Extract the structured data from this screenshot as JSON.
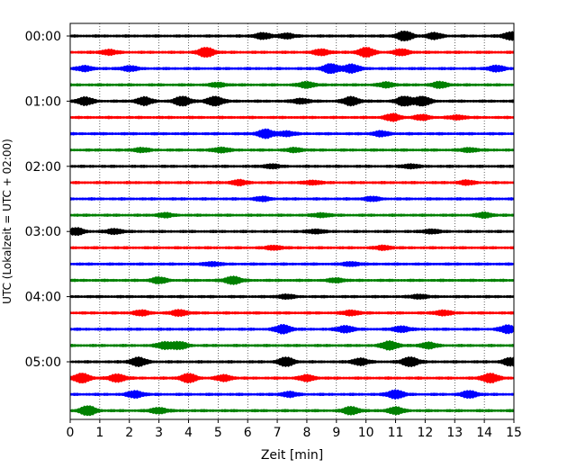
{
  "chart_data": {
    "type": "line",
    "title": "",
    "xlabel": "Zeit  [min]",
    "ylabel": "UTC (Lokalzeit = UTC + 02:00)",
    "xlim": [
      0,
      15
    ],
    "xticks": [
      "0",
      "1",
      "2",
      "3",
      "4",
      "5",
      "6",
      "7",
      "8",
      "9",
      "10",
      "11",
      "12",
      "13",
      "14",
      "15"
    ],
    "y_tick_labels": [
      "00:00",
      "01:00",
      "02:00",
      "03:00",
      "04:00",
      "05:00"
    ],
    "grid": "vertical dotted",
    "trace_interval_minutes": 15,
    "trace_count": 24,
    "trace_colors": [
      "#000000",
      "#ff0000",
      "#0000ff",
      "#008000"
    ],
    "bursts": [
      [
        [
          6.5,
          0.6
        ],
        [
          7.3,
          0.5
        ],
        [
          11.3,
          1.0
        ],
        [
          12.3,
          0.6
        ],
        [
          14.9,
          0.8
        ]
      ],
      [
        [
          1.3,
          0.5
        ],
        [
          4.6,
          1.0
        ],
        [
          8.5,
          0.6
        ],
        [
          10.0,
          1.0
        ],
        [
          11.2,
          0.6
        ]
      ],
      [
        [
          0.5,
          0.5
        ],
        [
          2.0,
          0.5
        ],
        [
          8.8,
          1.0
        ],
        [
          9.5,
          0.9
        ],
        [
          14.4,
          0.6
        ]
      ],
      [
        [
          5.0,
          0.4
        ],
        [
          8.0,
          0.6
        ],
        [
          10.7,
          0.5
        ],
        [
          12.5,
          0.6
        ]
      ],
      [
        [
          0.5,
          0.8
        ],
        [
          2.5,
          0.8
        ],
        [
          3.8,
          1.0
        ],
        [
          4.9,
          1.0
        ],
        [
          7.8,
          0.5
        ],
        [
          9.5,
          0.9
        ],
        [
          11.3,
          1.0
        ],
        [
          11.9,
          1.0
        ]
      ],
      [
        [
          10.9,
          0.7
        ],
        [
          11.9,
          0.5
        ],
        [
          13.1,
          0.4
        ]
      ],
      [
        [
          6.6,
          0.9
        ],
        [
          7.3,
          0.5
        ],
        [
          10.5,
          0.5
        ]
      ],
      [
        [
          2.4,
          0.4
        ],
        [
          5.1,
          0.5
        ],
        [
          7.6,
          0.4
        ],
        [
          13.5,
          0.4
        ]
      ],
      [
        [
          6.8,
          0.4
        ],
        [
          11.5,
          0.4
        ]
      ],
      [
        [
          5.7,
          0.5
        ],
        [
          8.2,
          0.4
        ],
        [
          13.4,
          0.4
        ]
      ],
      [
        [
          6.5,
          0.4
        ],
        [
          10.2,
          0.4
        ]
      ],
      [
        [
          3.2,
          0.4
        ],
        [
          8.5,
          0.4
        ],
        [
          14.0,
          0.5
        ]
      ],
      [
        [
          0.2,
          0.7
        ],
        [
          1.5,
          0.5
        ],
        [
          8.3,
          0.4
        ],
        [
          12.2,
          0.4
        ]
      ],
      [
        [
          6.9,
          0.4
        ],
        [
          10.6,
          0.4
        ]
      ],
      [
        [
          4.8,
          0.4
        ],
        [
          9.5,
          0.4
        ]
      ],
      [
        [
          3.0,
          0.6
        ],
        [
          5.5,
          0.8
        ],
        [
          9.0,
          0.4
        ]
      ],
      [
        [
          7.3,
          0.4
        ],
        [
          11.8,
          0.4
        ]
      ],
      [
        [
          2.4,
          0.5
        ],
        [
          3.7,
          0.6
        ],
        [
          9.5,
          0.5
        ],
        [
          12.6,
          0.5
        ]
      ],
      [
        [
          7.2,
          0.9
        ],
        [
          9.3,
          0.7
        ],
        [
          11.2,
          0.6
        ],
        [
          14.8,
          0.8
        ]
      ],
      [
        [
          3.2,
          0.7
        ],
        [
          3.7,
          0.7
        ],
        [
          10.8,
          0.9
        ],
        [
          12.1,
          0.6
        ]
      ],
      [
        [
          2.3,
          0.9
        ],
        [
          7.3,
          0.9
        ],
        [
          9.8,
          0.7
        ],
        [
          11.5,
          1.0
        ],
        [
          14.9,
          0.8
        ]
      ],
      [
        [
          0.4,
          1.0
        ],
        [
          1.6,
          0.8
        ],
        [
          4.0,
          0.9
        ],
        [
          5.2,
          0.6
        ],
        [
          8.0,
          0.6
        ],
        [
          14.2,
          1.0
        ]
      ],
      [
        [
          2.2,
          0.7
        ],
        [
          7.4,
          0.5
        ],
        [
          11.0,
          0.9
        ],
        [
          13.5,
          0.7
        ]
      ],
      [
        [
          0.6,
          1.0
        ],
        [
          3.0,
          0.6
        ],
        [
          9.5,
          0.8
        ],
        [
          11.0,
          0.7
        ]
      ]
    ]
  }
}
